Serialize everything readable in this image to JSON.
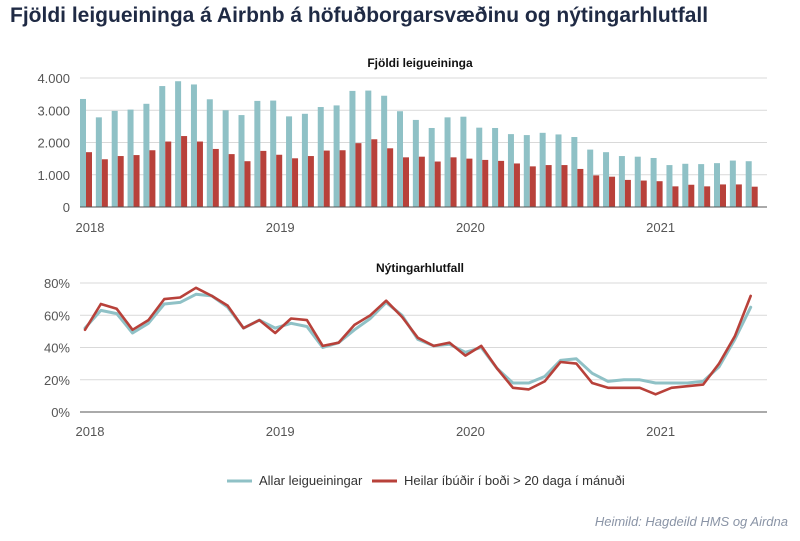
{
  "title": "Fjöldi leigueininga á Airbnb á höfuðborgarsvæðinu og nýtingarhlutfall",
  "source": "Heimild: Hagdeild HMS og Airdna",
  "colors": {
    "all": "#8fc1c6",
    "whole": "#b8413a",
    "title": "#1f2a44"
  },
  "chart_data": [
    {
      "type": "bar",
      "title": "Fjöldi leigueininga",
      "x_tick_labels": [
        "2018",
        "2019",
        "2020",
        "2021"
      ],
      "y_tick_labels": [
        "0",
        "1.000",
        "2.000",
        "3.000",
        "4.000"
      ],
      "ylim": [
        0,
        4000
      ],
      "period": "monthly, 2018-01 to 2021-07",
      "series": [
        {
          "name": "Allar leigueiningar",
          "values": [
            3350,
            2780,
            2980,
            3020,
            3200,
            3750,
            3900,
            3800,
            3340,
            3000,
            2850,
            3290,
            3300,
            2810,
            2890,
            3100,
            3150,
            3600,
            3610,
            3450,
            2970,
            2700,
            2450,
            2780,
            2800,
            2460,
            2450,
            2260,
            2230,
            2300,
            2250,
            2170,
            1780,
            1700,
            1580,
            1560,
            1520,
            1300,
            1340,
            1330,
            1360,
            1440,
            1420
          ]
        },
        {
          "name": "Heilar íbúðir í boði > 20 daga í mánuði",
          "values": [
            1700,
            1480,
            1580,
            1610,
            1760,
            2030,
            2200,
            2030,
            1800,
            1640,
            1420,
            1740,
            1620,
            1510,
            1580,
            1750,
            1760,
            1980,
            2100,
            1820,
            1540,
            1560,
            1410,
            1540,
            1500,
            1460,
            1430,
            1350,
            1260,
            1300,
            1300,
            1180,
            980,
            940,
            840,
            820,
            800,
            640,
            690,
            640,
            700,
            700,
            630
          ]
        }
      ],
      "legend_position": "bottom",
      "grid": true
    },
    {
      "type": "line",
      "title": "Nýtingarhlutfall",
      "x_tick_labels": [
        "2018",
        "2019",
        "2020",
        "2021"
      ],
      "y_tick_labels": [
        "0%",
        "20%",
        "40%",
        "60%",
        "80%"
      ],
      "ylim": [
        0,
        80
      ],
      "period": "monthly, 2018-01 to 2021-07",
      "series": [
        {
          "name": "Allar leigueiningar",
          "values": [
            52,
            63,
            61,
            49,
            55,
            67,
            68,
            73,
            72,
            65,
            52,
            57,
            52,
            55,
            53,
            40,
            43,
            51,
            58,
            68,
            60,
            45,
            41,
            42,
            37,
            40,
            27,
            18,
            18,
            22,
            32,
            33,
            24,
            19,
            20,
            20,
            18,
            18,
            18,
            19,
            28,
            45,
            65
          ]
        },
        {
          "name": "Heilar íbúðir í boði > 20 daga í mánuði",
          "values": [
            51,
            67,
            64,
            51,
            57,
            70,
            71,
            77,
            72,
            66,
            52,
            57,
            49,
            58,
            57,
            41,
            43,
            54,
            60,
            69,
            59,
            46,
            41,
            43,
            35,
            41,
            27,
            15,
            14,
            19,
            31,
            30,
            18,
            15,
            15,
            15,
            11,
            15,
            16,
            17,
            30,
            47,
            72
          ]
        }
      ],
      "legend_position": "bottom",
      "grid": true
    }
  ],
  "legend": [
    {
      "label": "Allar leigueiningar",
      "color": "#8fc1c6"
    },
    {
      "label": "Heilar íbúðir í boði > 20 daga í mánuði",
      "color": "#b8413a"
    }
  ]
}
